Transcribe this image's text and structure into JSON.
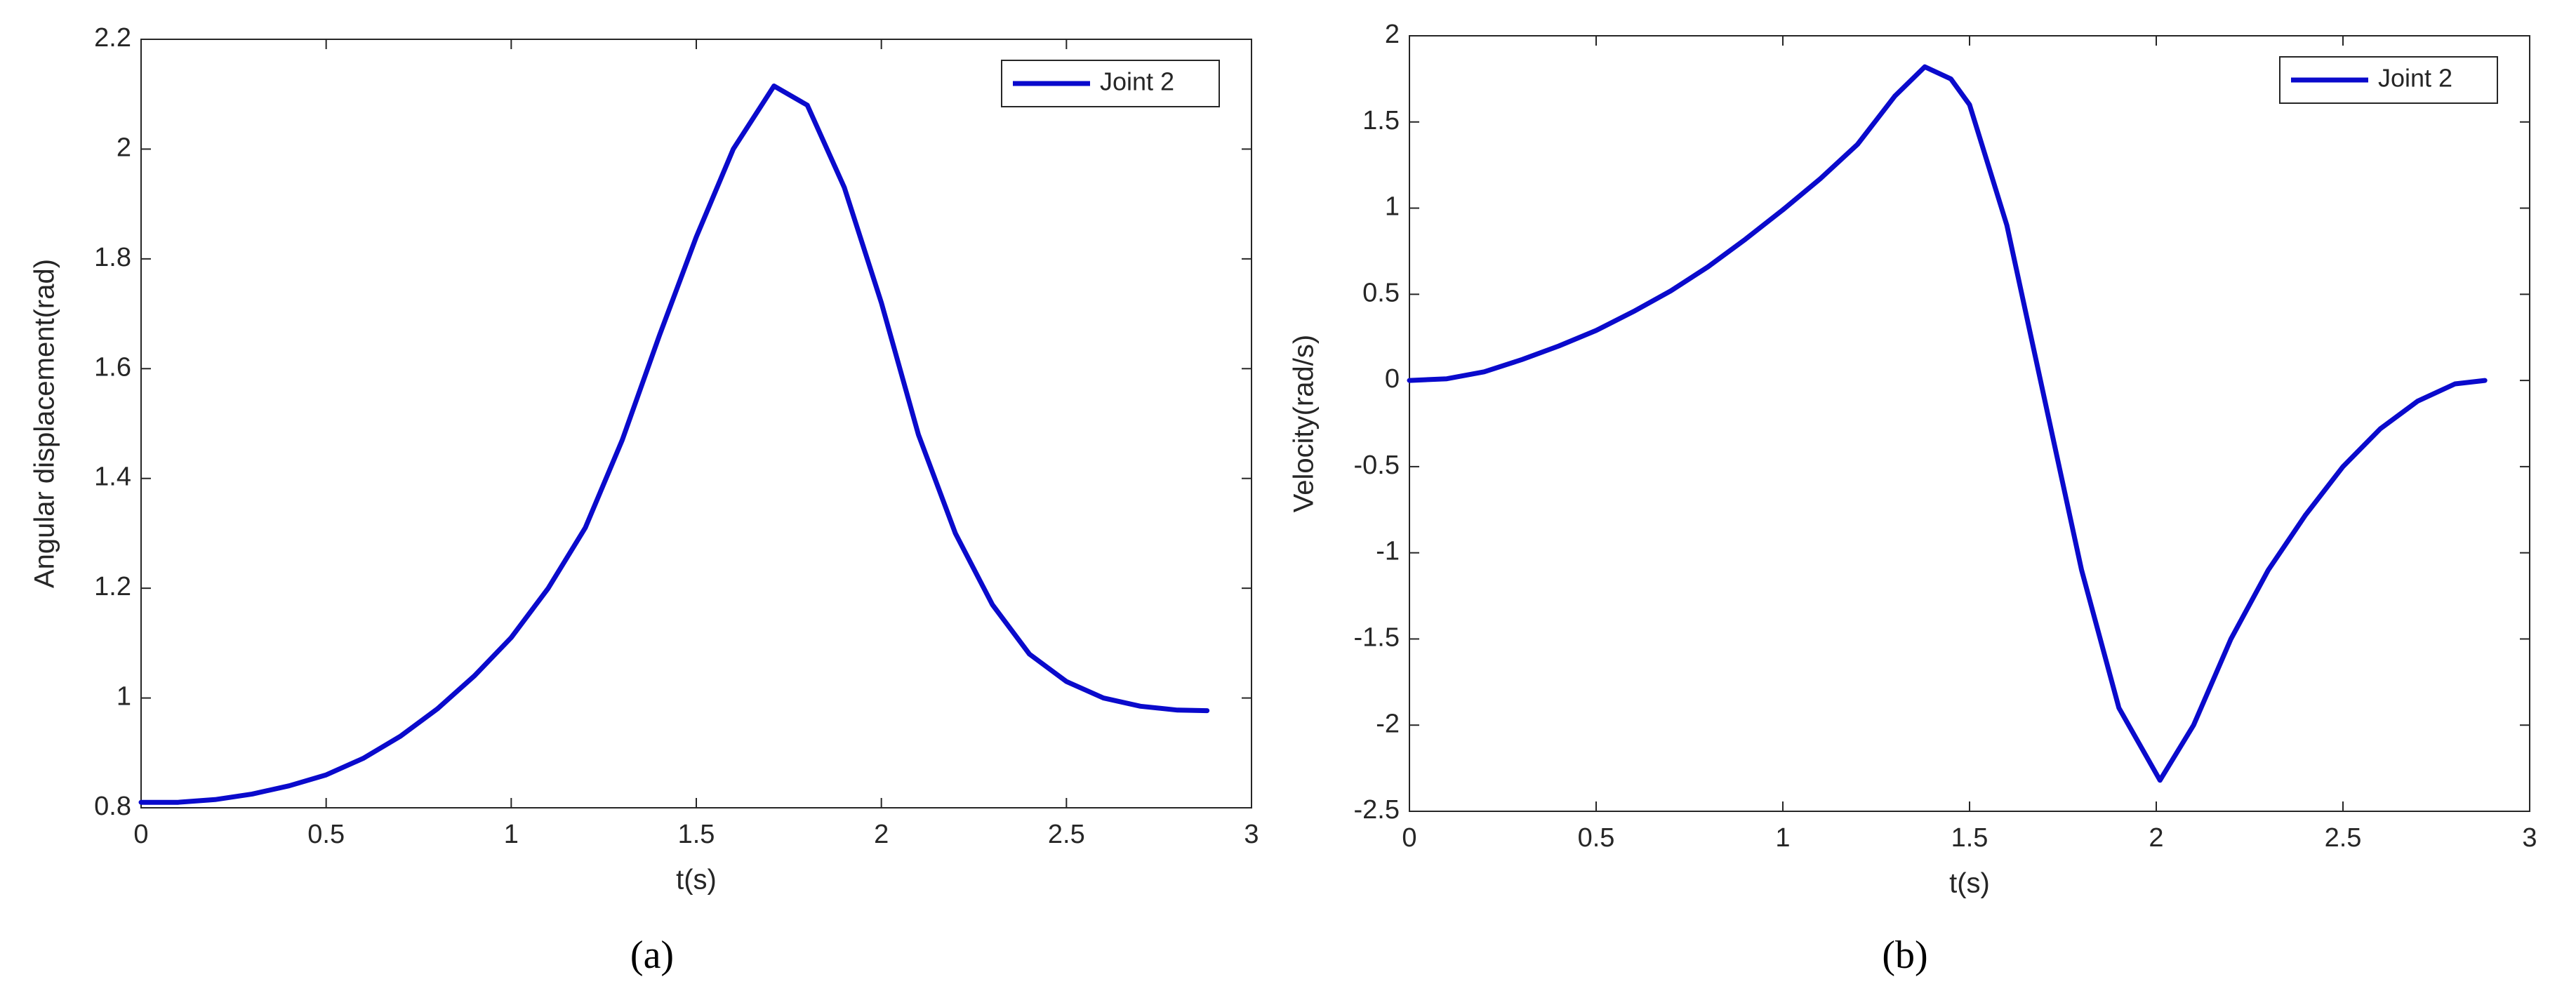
{
  "chart_data": [
    {
      "type": "line",
      "caption": "(a)",
      "x_label": "t(s)",
      "y_label": "Angular displacement(rad)",
      "xlim": [
        0,
        3
      ],
      "xticks": [
        0,
        0.5,
        1,
        1.5,
        2,
        2.5,
        3
      ],
      "ylim": [
        0.8,
        2.2
      ],
      "yticks": [
        0.8,
        1,
        1.2,
        1.4,
        1.6,
        1.8,
        2,
        2.2
      ],
      "legend": "upper right",
      "x": [
        0,
        0.1,
        0.2,
        0.3,
        0.4,
        0.5,
        0.6,
        0.7,
        0.8,
        0.9,
        1.0,
        1.1,
        1.2,
        1.3,
        1.4,
        1.5,
        1.6,
        1.71,
        1.8,
        1.9,
        2.0,
        2.1,
        2.2,
        2.3,
        2.4,
        2.5,
        2.6,
        2.7,
        2.8,
        2.88
      ],
      "series": [
        {
          "name": "Joint 2",
          "color": "#0a0acc",
          "values": [
            0.81,
            0.81,
            0.815,
            0.825,
            0.84,
            0.86,
            0.89,
            0.93,
            0.98,
            1.04,
            1.11,
            1.2,
            1.31,
            1.47,
            1.66,
            1.84,
            2.0,
            2.115,
            2.08,
            1.93,
            1.72,
            1.48,
            1.3,
            1.17,
            1.08,
            1.03,
            1.0,
            0.985,
            0.978,
            0.977
          ]
        }
      ]
    },
    {
      "type": "line",
      "caption": "(b)",
      "x_label": "t(s)",
      "y_label": "Velocity(rad/s)",
      "xlim": [
        0,
        3
      ],
      "xticks": [
        0,
        0.5,
        1,
        1.5,
        2,
        2.5,
        3
      ],
      "ylim": [
        -2.5,
        2
      ],
      "yticks": [
        -2.5,
        -2,
        -1.5,
        -1,
        -0.5,
        0,
        0.5,
        1,
        1.5,
        2
      ],
      "legend": "upper right",
      "x": [
        0,
        0.1,
        0.2,
        0.3,
        0.4,
        0.5,
        0.6,
        0.7,
        0.8,
        0.9,
        1.0,
        1.1,
        1.2,
        1.3,
        1.38,
        1.45,
        1.5,
        1.6,
        1.7,
        1.8,
        1.9,
        2.01,
        2.1,
        2.2,
        2.3,
        2.4,
        2.5,
        2.6,
        2.7,
        2.8,
        2.88
      ],
      "series": [
        {
          "name": "Joint 2",
          "color": "#0a0acc",
          "values": [
            0,
            0.01,
            0.05,
            0.12,
            0.2,
            0.29,
            0.4,
            0.52,
            0.66,
            0.82,
            0.99,
            1.17,
            1.37,
            1.65,
            1.82,
            1.75,
            1.6,
            0.9,
            -0.1,
            -1.1,
            -1.9,
            -2.32,
            -2.0,
            -1.5,
            -1.1,
            -0.78,
            -0.5,
            -0.28,
            -0.12,
            -0.02,
            0
          ]
        }
      ]
    }
  ]
}
